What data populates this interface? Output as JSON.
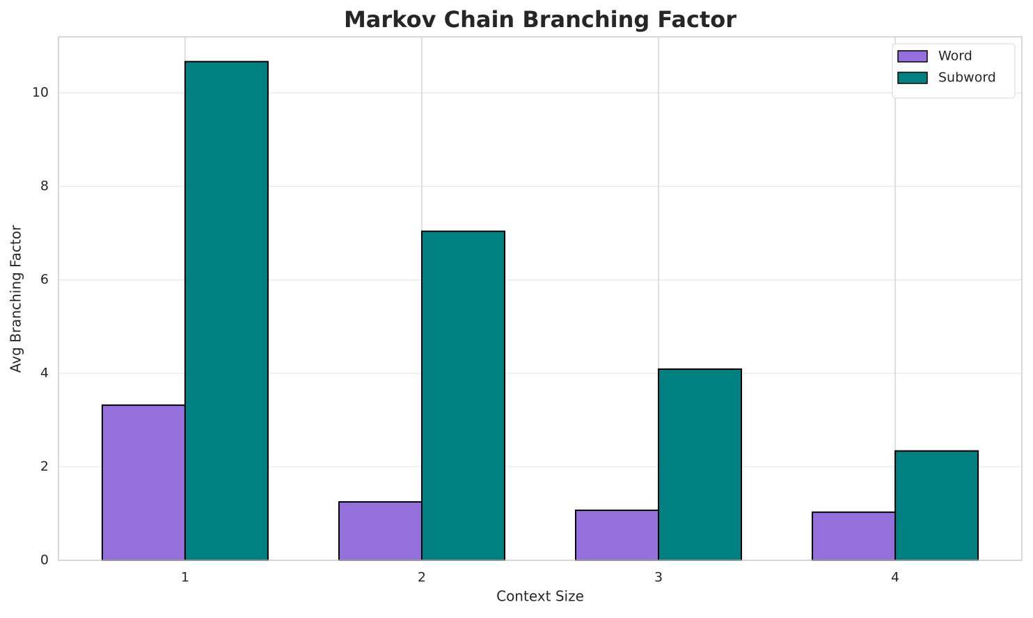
{
  "chart_data": {
    "type": "bar",
    "title": "Markov Chain Branching Factor",
    "x_label": "Context Size",
    "y_label": "Avg Branching Factor",
    "categories": [
      "1",
      "2",
      "3",
      "4"
    ],
    "series": [
      {
        "name": "Word",
        "color": "#9370db",
        "values": [
          3.32,
          1.25,
          1.07,
          1.03
        ]
      },
      {
        "name": "Subword",
        "color": "#008080",
        "values": [
          10.67,
          7.04,
          4.09,
          2.34
        ]
      }
    ],
    "ylim": [
      0,
      11.2
    ],
    "yticks": [
      0,
      2,
      4,
      6,
      8,
      10
    ],
    "grid": true,
    "legend": "upper right"
  }
}
